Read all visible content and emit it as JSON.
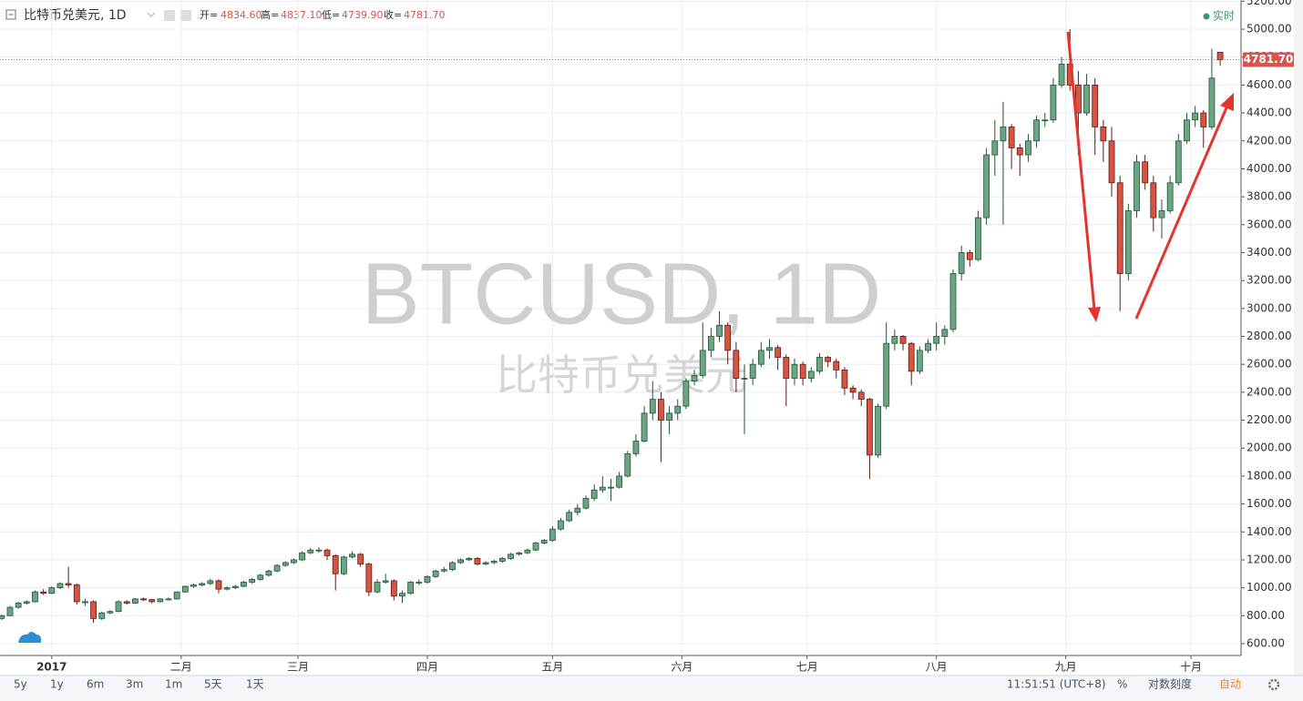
{
  "header": {
    "symbol": "比特币兑美元, 1D",
    "open_label": "开=",
    "open": "4834.60",
    "high_label": "高=",
    "high": "4837.10",
    "low_label": "低=",
    "low": "4739.90",
    "close_label": "收=",
    "close": "4781.70",
    "realtime": "实时"
  },
  "chart_data": {
    "type": "candlestick",
    "watermark": "BTCUSD, 1D",
    "watermark_subtitle": "比特币兑美元",
    "up_color": "#6ba583",
    "up_border": "#225437",
    "down_color": "#d75442",
    "down_border": "#5b1a13",
    "grid": true,
    "last_price_label": "4781.70",
    "last_price_color": "#d9534f",
    "xlim": [
      -0.2,
      148.5
    ],
    "xticks": [
      {
        "value": 6,
        "label": "2017"
      },
      {
        "value": 21.5,
        "label": "二月"
      },
      {
        "value": 35.5,
        "label": "三月"
      },
      {
        "value": 51,
        "label": "四月"
      },
      {
        "value": 66,
        "label": "五月"
      },
      {
        "value": 81.5,
        "label": "六月"
      },
      {
        "value": 96.5,
        "label": "七月"
      },
      {
        "value": 112,
        "label": "八月"
      },
      {
        "value": 127.5,
        "label": "九月"
      },
      {
        "value": 142.5,
        "label": "十月"
      }
    ],
    "ylim": [
      515,
      5209
    ],
    "yticks": [
      {
        "value": 600,
        "label": "600.00"
      },
      {
        "value": 800,
        "label": "800.00"
      },
      {
        "value": 1000,
        "label": "1000.00"
      },
      {
        "value": 1200,
        "label": "1200.00"
      },
      {
        "value": 1400,
        "label": "1400.00"
      },
      {
        "value": 1600,
        "label": "1600.00"
      },
      {
        "value": 1800,
        "label": "1800.00"
      },
      {
        "value": 2000,
        "label": "2000.00"
      },
      {
        "value": 2200,
        "label": "2200.00"
      },
      {
        "value": 2400,
        "label": "2400.00"
      },
      {
        "value": 2600,
        "label": "2600.00"
      },
      {
        "value": 2800,
        "label": "2800.00"
      },
      {
        "value": 3000,
        "label": "3000.00"
      },
      {
        "value": 3200,
        "label": "3200.00"
      },
      {
        "value": 3400,
        "label": "3400.00"
      },
      {
        "value": 3600,
        "label": "3600.00"
      },
      {
        "value": 3800,
        "label": "3800.00"
      },
      {
        "value": 4000,
        "label": "4000.00"
      },
      {
        "value": 4200,
        "label": "4200.00"
      },
      {
        "value": 4400,
        "label": "4400.00"
      },
      {
        "value": 4600,
        "label": "4600.00"
      },
      {
        "value": 4800,
        "label": "4800.00"
      },
      {
        "value": 5000,
        "label": "5000.00"
      },
      {
        "value": 5200,
        "label": "5200.00"
      }
    ],
    "ohlc": [
      [
        780,
        810,
        770,
        800
      ],
      [
        800,
        870,
        795,
        860
      ],
      [
        860,
        900,
        850,
        890
      ],
      [
        890,
        910,
        880,
        900
      ],
      [
        900,
        980,
        895,
        970
      ],
      [
        970,
        990,
        950,
        960
      ],
      [
        960,
        1010,
        955,
        1000
      ],
      [
        1000,
        1040,
        990,
        1030
      ],
      [
        1030,
        1150,
        1000,
        1020
      ],
      [
        1020,
        1030,
        880,
        900
      ],
      [
        900,
        920,
        870,
        900
      ],
      [
        900,
        910,
        750,
        780
      ],
      [
        780,
        830,
        770,
        820
      ],
      [
        820,
        840,
        810,
        830
      ],
      [
        830,
        910,
        825,
        900
      ],
      [
        900,
        910,
        880,
        890
      ],
      [
        890,
        925,
        885,
        920
      ],
      [
        920,
        930,
        905,
        915
      ],
      [
        915,
        920,
        890,
        900
      ],
      [
        900,
        925,
        895,
        920
      ],
      [
        920,
        930,
        910,
        920
      ],
      [
        920,
        975,
        915,
        970
      ],
      [
        970,
        1015,
        965,
        1010
      ],
      [
        1010,
        1030,
        1000,
        1020
      ],
      [
        1020,
        1040,
        1010,
        1030
      ],
      [
        1030,
        1065,
        1020,
        1050
      ],
      [
        1050,
        1060,
        960,
        990
      ],
      [
        990,
        1010,
        980,
        1000
      ],
      [
        1000,
        1020,
        990,
        1010
      ],
      [
        1010,
        1050,
        1005,
        1040
      ],
      [
        1040,
        1070,
        1030,
        1060
      ],
      [
        1060,
        1100,
        1050,
        1090
      ],
      [
        1090,
        1130,
        1080,
        1120
      ],
      [
        1120,
        1170,
        1110,
        1160
      ],
      [
        1160,
        1190,
        1150,
        1180
      ],
      [
        1180,
        1210,
        1170,
        1200
      ],
      [
        1200,
        1260,
        1190,
        1250
      ],
      [
        1250,
        1285,
        1240,
        1270
      ],
      [
        1270,
        1290,
        1250,
        1270
      ],
      [
        1270,
        1280,
        1200,
        1230
      ],
      [
        1230,
        1240,
        980,
        1100
      ],
      [
        1100,
        1230,
        1090,
        1220
      ],
      [
        1220,
        1260,
        1210,
        1240
      ],
      [
        1240,
        1250,
        1150,
        1170
      ],
      [
        1170,
        1180,
        940,
        970
      ],
      [
        970,
        1060,
        960,
        1040
      ],
      [
        1040,
        1100,
        1030,
        1050
      ],
      [
        1050,
        1060,
        910,
        940
      ],
      [
        940,
        980,
        890,
        960
      ],
      [
        960,
        1050,
        950,
        1040
      ],
      [
        1040,
        1060,
        1020,
        1040
      ],
      [
        1040,
        1090,
        1030,
        1080
      ],
      [
        1080,
        1130,
        1070,
        1120
      ],
      [
        1120,
        1150,
        1110,
        1130
      ],
      [
        1130,
        1190,
        1120,
        1180
      ],
      [
        1180,
        1210,
        1170,
        1200
      ],
      [
        1200,
        1220,
        1190,
        1210
      ],
      [
        1210,
        1220,
        1160,
        1170
      ],
      [
        1170,
        1190,
        1160,
        1180
      ],
      [
        1180,
        1200,
        1170,
        1190
      ],
      [
        1190,
        1220,
        1180,
        1210
      ],
      [
        1210,
        1250,
        1200,
        1240
      ],
      [
        1240,
        1260,
        1230,
        1250
      ],
      [
        1250,
        1280,
        1240,
        1270
      ],
      [
        1270,
        1330,
        1260,
        1320
      ],
      [
        1320,
        1350,
        1310,
        1340
      ],
      [
        1340,
        1440,
        1330,
        1420
      ],
      [
        1420,
        1500,
        1410,
        1480
      ],
      [
        1480,
        1560,
        1470,
        1540
      ],
      [
        1540,
        1600,
        1520,
        1570
      ],
      [
        1570,
        1660,
        1560,
        1640
      ],
      [
        1640,
        1740,
        1620,
        1700
      ],
      [
        1700,
        1800,
        1680,
        1720
      ],
      [
        1720,
        1780,
        1620,
        1720
      ],
      [
        1720,
        1830,
        1710,
        1800
      ],
      [
        1800,
        1980,
        1790,
        1960
      ],
      [
        1960,
        2100,
        1940,
        2050
      ],
      [
        2050,
        2300,
        2040,
        2250
      ],
      [
        2250,
        2480,
        2200,
        2350
      ],
      [
        2350,
        2400,
        1900,
        2200
      ],
      [
        2200,
        2300,
        2100,
        2250
      ],
      [
        2250,
        2350,
        2200,
        2300
      ],
      [
        2300,
        2500,
        2280,
        2480
      ],
      [
        2480,
        2560,
        2450,
        2520
      ],
      [
        2520,
        2900,
        2500,
        2700
      ],
      [
        2700,
        2860,
        2650,
        2800
      ],
      [
        2800,
        2980,
        2760,
        2880
      ],
      [
        2880,
        2900,
        2600,
        2700
      ],
      [
        2700,
        2760,
        2400,
        2500
      ],
      [
        2500,
        2600,
        2100,
        2500
      ],
      [
        2500,
        2640,
        2450,
        2600
      ],
      [
        2600,
        2760,
        2580,
        2700
      ],
      [
        2700,
        2780,
        2640,
        2720
      ],
      [
        2720,
        2740,
        2560,
        2650
      ],
      [
        2650,
        2670,
        2300,
        2500
      ],
      [
        2500,
        2640,
        2450,
        2600
      ],
      [
        2600,
        2620,
        2450,
        2500
      ],
      [
        2500,
        2580,
        2470,
        2550
      ],
      [
        2550,
        2680,
        2530,
        2650
      ],
      [
        2650,
        2660,
        2580,
        2620
      ],
      [
        2620,
        2640,
        2500,
        2560
      ],
      [
        2560,
        2580,
        2380,
        2430
      ],
      [
        2430,
        2450,
        2350,
        2400
      ],
      [
        2400,
        2420,
        2300,
        2350
      ],
      [
        2350,
        2360,
        1780,
        1950
      ],
      [
        1950,
        2320,
        1930,
        2300
      ],
      [
        2300,
        2900,
        2280,
        2750
      ],
      [
        2750,
        2850,
        2700,
        2800
      ],
      [
        2800,
        2810,
        2700,
        2750
      ],
      [
        2750,
        2760,
        2450,
        2550
      ],
      [
        2550,
        2730,
        2530,
        2700
      ],
      [
        2700,
        2780,
        2680,
        2750
      ],
      [
        2750,
        2900,
        2700,
        2800
      ],
      [
        2800,
        2880,
        2740,
        2850
      ],
      [
        2850,
        3280,
        2830,
        3250
      ],
      [
        3250,
        3450,
        3200,
        3400
      ],
      [
        3400,
        3420,
        3300,
        3350
      ],
      [
        3350,
        3700,
        3340,
        3650
      ],
      [
        3650,
        4150,
        3600,
        4100
      ],
      [
        4100,
        4350,
        3950,
        4200
      ],
      [
        4200,
        4480,
        3600,
        4300
      ],
      [
        4300,
        4320,
        4000,
        4150
      ],
      [
        4150,
        4180,
        3950,
        4100
      ],
      [
        4100,
        4250,
        4050,
        4200
      ],
      [
        4200,
        4380,
        4150,
        4350
      ],
      [
        4350,
        4400,
        4300,
        4350
      ],
      [
        4350,
        4650,
        4330,
        4600
      ],
      [
        4600,
        4800,
        4580,
        4750
      ],
      [
        4750,
        5000,
        4560,
        4600
      ],
      [
        4600,
        4700,
        4100,
        4400
      ],
      [
        4400,
        4680,
        4380,
        4600
      ],
      [
        4600,
        4650,
        4100,
        4300
      ],
      [
        4300,
        4350,
        4050,
        4200
      ],
      [
        4200,
        4300,
        3800,
        3900
      ],
      [
        3900,
        3950,
        2980,
        3250
      ],
      [
        3250,
        3750,
        3200,
        3700
      ],
      [
        3700,
        4100,
        3650,
        4050
      ],
      [
        4050,
        4100,
        3850,
        3900
      ],
      [
        3900,
        3950,
        3550,
        3650
      ],
      [
        3650,
        3780,
        3500,
        3700
      ],
      [
        3700,
        3950,
        3680,
        3900
      ],
      [
        3900,
        4250,
        3880,
        4200
      ],
      [
        4200,
        4400,
        4180,
        4350
      ],
      [
        4350,
        4450,
        4300,
        4400
      ],
      [
        4400,
        4420,
        4150,
        4300
      ],
      [
        4300,
        4860,
        4280,
        4650
      ],
      [
        4834.6,
        4837.1,
        4739.9,
        4781.7
      ]
    ]
  },
  "toolbar": {
    "ranges": [
      "5y",
      "1y",
      "6m",
      "3m",
      "1m",
      "5天",
      "1天"
    ],
    "time": "11:51:51 (UTC+8)",
    "percent": "%",
    "log": "对数刻度",
    "auto": "自动"
  }
}
